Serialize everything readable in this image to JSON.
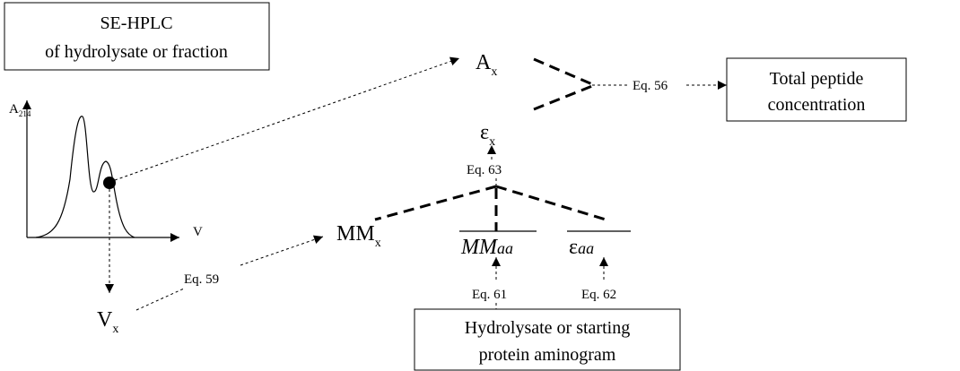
{
  "boxes": [
    {
      "lines": [
        "SE-HPLC",
        "of hydrolysate or fraction"
      ]
    },
    {
      "lines": [
        "Total peptide",
        "concentration"
      ]
    },
    {
      "lines": [
        "Hydrolysate or starting",
        "protein aminogram"
      ]
    }
  ],
  "labels": {
    "a214": {
      "base": "A",
      "sub": "214"
    },
    "v": {
      "base": "V"
    },
    "ax": {
      "base": "A",
      "sub": "x"
    },
    "ex": {
      "base": "ε",
      "sub": "x"
    },
    "mmx": {
      "base": "MM",
      "sub": "x"
    },
    "vx": {
      "base": "V",
      "sub": "x"
    },
    "mmaa": {
      "base": "MM",
      "sub": "aa"
    },
    "eaa": {
      "base": "ε",
      "sub": "aa"
    }
  },
  "equations": {
    "eq56": "Eq. 56",
    "eq63": "Eq. 63",
    "eq59": "Eq. 59",
    "eq61": "Eq. 61",
    "eq62": "Eq. 62"
  }
}
